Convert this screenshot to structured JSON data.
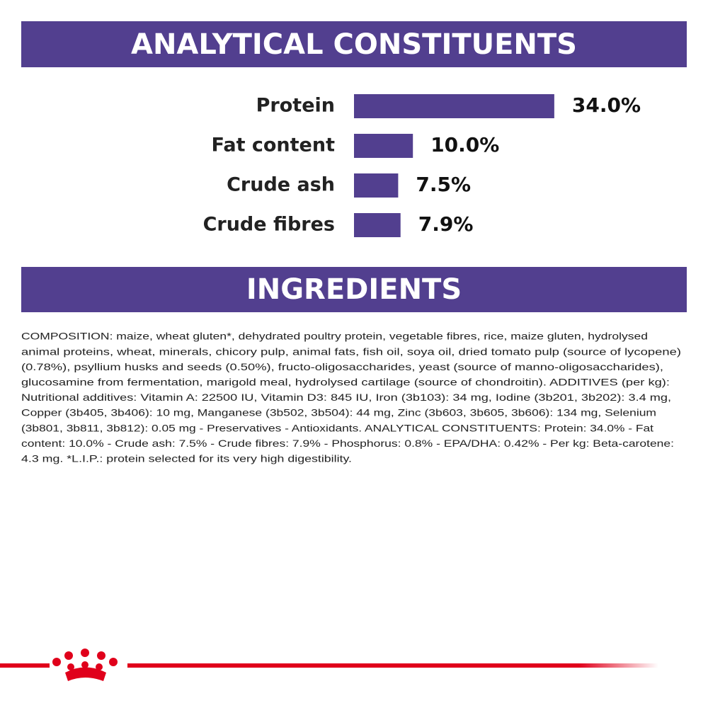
{
  "chart_data": {
    "type": "bar",
    "orientation": "horizontal",
    "title": "ANALYTICAL CONSTITUENTS",
    "categories": [
      "Protein",
      "Fat content",
      "Crude ash",
      "Crude fibres"
    ],
    "values": [
      34.0,
      10.0,
      7.5,
      7.9
    ],
    "value_labels": [
      "34.0%",
      "10.0%",
      "7.5%",
      "7.9%"
    ],
    "color": "#523f8f"
  },
  "ingredients": {
    "title": "INGREDIENTS",
    "lines": [
      "COMPOSITION: maize, wheat gluten*, dehydrated poultry protein, vegetable fibres, rice, maize gluten, hydrolysed",
      "animal proteins, wheat, minerals, chicory pulp, animal fats, fish oil, soya oil, dried tomato pulp (source of lycopene)",
      "(0.78%), psyllium husks and seeds (0.50%), fructo-oligosaccharides, yeast (source of manno-oligosaccharides),",
      "glucosamine from fermentation, marigold meal, hydrolysed cartilage (source of chondroitin). ADDITIVES (per kg):",
      "Nutritional additives: Vitamin A: 22500 IU, Vitamin D3: 845 IU, Iron (3b103): 34 mg, Iodine (3b201, 3b202): 3.4 mg,",
      "Copper (3b405, 3b406): 10 mg, Manganese (3b502, 3b504): 44 mg, Zinc (3b603, 3b605, 3b606): 134 mg, Selenium",
      "(3b801, 3b811, 3b812): 0.05 mg - Preservatives - Antioxidants. ANALYTICAL CONSTITUENTS: Protein: 34.0% - Fat",
      "content: 10.0% - Crude ash: 7.5% - Crude fibres: 7.9% - Phosphorus: 0.8% - EPA/DHA: 0.42% - Per kg: Beta-carotene:",
      "4.3 mg. *L.I.P.: protein selected for its very high digestibility."
    ]
  }
}
